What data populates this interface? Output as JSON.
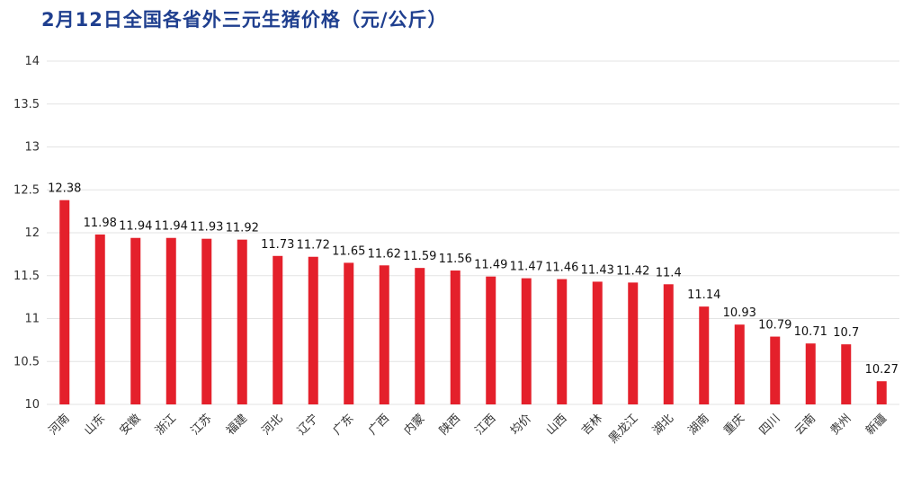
{
  "chart_data": {
    "type": "bar",
    "title": "2月12日全国各省外三元生猪价格（元/公斤）",
    "xlabel": "",
    "ylabel": "",
    "ylim": [
      10,
      14
    ],
    "yticks": [
      10,
      10.5,
      11,
      11.5,
      12,
      12.5,
      13,
      13.5,
      14
    ],
    "grid": true,
    "bar_color": "#e4202b",
    "categories": [
      "河南",
      "山东",
      "安徽",
      "浙江",
      "江苏",
      "福建",
      "河北",
      "辽宁",
      "广东",
      "广西",
      "内蒙",
      "陕西",
      "江西",
      "均价",
      "山西",
      "吉林",
      "黑龙江",
      "湖北",
      "湖南",
      "重庆",
      "四川",
      "云南",
      "贵州",
      "新疆"
    ],
    "values": [
      12.38,
      11.98,
      11.94,
      11.94,
      11.93,
      11.92,
      11.73,
      11.72,
      11.65,
      11.62,
      11.59,
      11.56,
      11.49,
      11.47,
      11.46,
      11.43,
      11.42,
      11.4,
      11.14,
      10.93,
      10.79,
      10.71,
      10.7,
      10.27
    ]
  }
}
